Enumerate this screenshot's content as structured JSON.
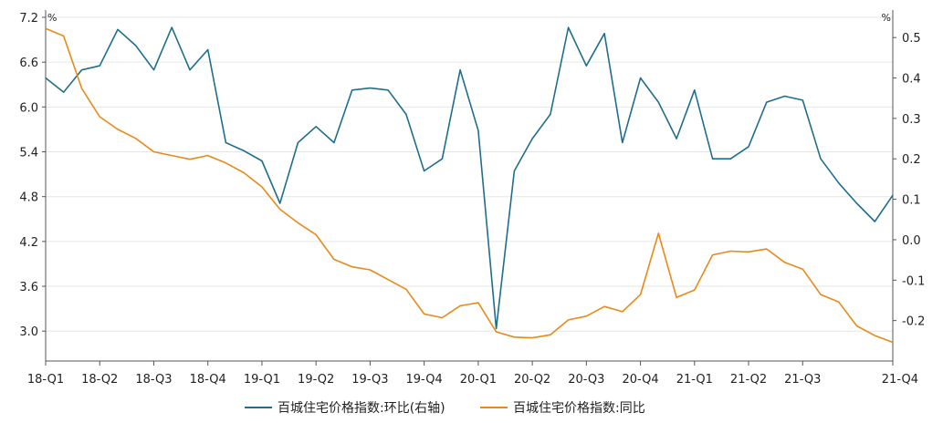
{
  "chart_data": {
    "type": "line",
    "title": "",
    "x": [
      "18-01",
      "18-02",
      "18-03",
      "18-04",
      "18-05",
      "18-06",
      "18-07",
      "18-08",
      "18-09",
      "18-10",
      "18-11",
      "18-12",
      "19-01",
      "19-02",
      "19-03",
      "19-04",
      "19-05",
      "19-06",
      "19-07",
      "19-08",
      "19-09",
      "19-10",
      "19-11",
      "19-12",
      "20-01",
      "20-02",
      "20-03",
      "20-04",
      "20-05",
      "20-06",
      "20-07",
      "20-08",
      "20-09",
      "20-10",
      "20-11",
      "20-12",
      "21-01",
      "21-02",
      "21-03",
      "21-04",
      "21-05",
      "21-06",
      "21-07",
      "21-08",
      "21-09",
      "21-10",
      "21-11",
      "21-12"
    ],
    "x_tick_labels": [
      "18-Q1",
      "18-Q2",
      "18-Q3",
      "18-Q4",
      "19-Q1",
      "19-Q2",
      "19-Q3",
      "19-Q4",
      "20-Q1",
      "20-Q2",
      "20-Q3",
      "20-Q4",
      "21-Q1",
      "21-Q2",
      "21-Q3",
      "21-Q4"
    ],
    "y_left": {
      "unit": "%",
      "ylim": [
        2.6,
        7.2
      ],
      "ticks": [
        3.0,
        3.6,
        4.2,
        4.8,
        5.4,
        6.0,
        6.6,
        7.2
      ],
      "tick_labels": [
        "3.0",
        "3.6",
        "4.2",
        "4.8",
        "5.4",
        "6.0",
        "6.6",
        "7.2"
      ]
    },
    "y_right": {
      "unit": "%",
      "ylim": [
        -0.3,
        0.55
      ],
      "ticks": [
        -0.2,
        -0.1,
        0.0,
        0.1,
        0.2,
        0.3,
        0.4,
        0.5
      ],
      "tick_labels": [
        "-0.2",
        "-0.1",
        "0.0",
        "0.1",
        "0.2",
        "0.3",
        "0.4",
        "0.5"
      ]
    },
    "grid": true,
    "legend_position": "bottom",
    "series": [
      {
        "name": "百城住宅价格指数:环比(右轴)",
        "axis": "right",
        "color": "#1f6e8c",
        "values": [
          0.4,
          0.365,
          0.42,
          0.43,
          0.52,
          0.48,
          0.42,
          0.525,
          0.42,
          0.47,
          0.24,
          0.22,
          0.195,
          0.09,
          0.24,
          0.28,
          0.24,
          0.37,
          0.375,
          0.37,
          0.31,
          0.17,
          0.2,
          0.42,
          0.27,
          -0.22,
          0.17,
          0.25,
          0.31,
          0.525,
          0.43,
          0.51,
          0.24,
          0.4,
          0.34,
          0.25,
          0.37,
          0.2,
          0.2,
          0.23,
          0.34,
          0.355,
          0.345,
          0.2,
          0.14,
          0.09,
          0.045,
          0.11
        ]
      },
      {
        "name": "百城住宅价格指数:同比",
        "axis": "left",
        "color": "#e88a1a",
        "values": [
          7.05,
          6.95,
          6.25,
          5.87,
          5.7,
          5.58,
          5.4,
          5.35,
          5.3,
          5.35,
          5.25,
          5.12,
          4.93,
          4.63,
          4.45,
          4.29,
          3.96,
          3.86,
          3.82,
          3.69,
          3.56,
          3.23,
          3.18,
          3.34,
          3.38,
          2.99,
          2.92,
          2.91,
          2.95,
          3.15,
          3.2,
          3.33,
          3.26,
          3.49,
          4.31,
          3.45,
          3.55,
          4.02,
          4.07,
          4.06,
          4.1,
          3.92,
          3.83,
          3.49,
          3.39,
          3.07,
          2.94,
          2.85
        ]
      }
    ]
  }
}
